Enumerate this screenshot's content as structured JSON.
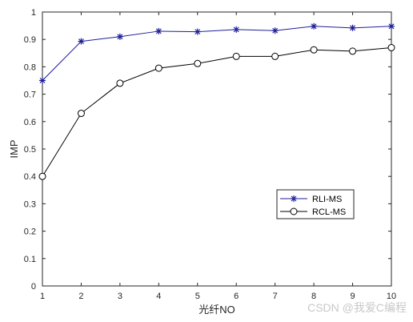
{
  "chart_data": {
    "type": "line",
    "x": [
      1,
      2,
      3,
      4,
      5,
      6,
      7,
      8,
      9,
      10
    ],
    "xlim": [
      1,
      10
    ],
    "ylim": [
      0,
      1
    ],
    "xticks": [
      "1",
      "2",
      "3",
      "4",
      "5",
      "6",
      "7",
      "8",
      "9",
      "10"
    ],
    "yticks": [
      "0",
      "0.1",
      "0.2",
      "0.3",
      "0.4",
      "0.5",
      "0.6",
      "0.7",
      "0.8",
      "0.9",
      "1"
    ],
    "xlabel": "光纤NO",
    "ylabel": "IMP",
    "grid": false,
    "legend_position": "lower-right",
    "series": [
      {
        "name": "RLI-MS",
        "color": "#1f1f9a",
        "marker": "asterisk",
        "values": [
          0.75,
          0.893,
          0.91,
          0.93,
          0.928,
          0.936,
          0.932,
          0.948,
          0.942,
          0.948
        ]
      },
      {
        "name": "RCL-MS",
        "color": "#000000",
        "marker": "circle",
        "values": [
          0.4,
          0.63,
          0.74,
          0.795,
          0.812,
          0.838,
          0.838,
          0.862,
          0.857,
          0.87
        ]
      }
    ]
  },
  "watermark": "CSDN @我爱C编程"
}
